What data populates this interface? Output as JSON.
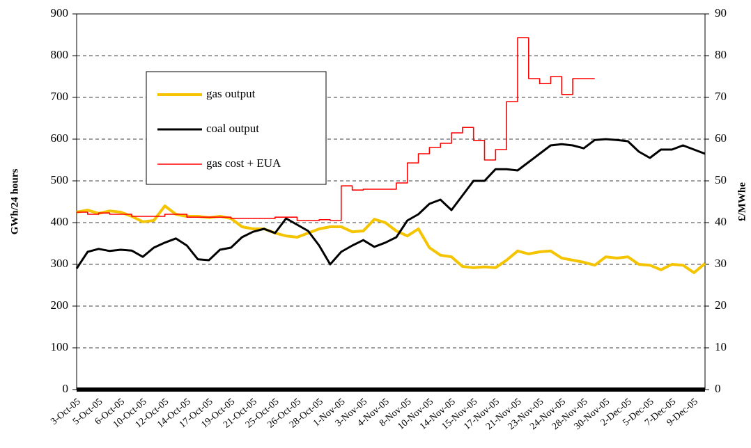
{
  "chart_data": {
    "type": "line",
    "ylabel": "GWh/24 hours",
    "y2label": "£/MWhe",
    "categories": [
      "3-Oct-05",
      null,
      "5-Oct-05",
      null,
      "6-Oct-05",
      null,
      "10-Oct-05",
      null,
      "12-Oct-05",
      null,
      "14-Oct-05",
      null,
      "17-Oct-05",
      null,
      "19-Oct-05",
      null,
      "21-Oct-05",
      null,
      "25-Oct-05",
      null,
      "26-Oct-05",
      null,
      "28-Oct-05",
      null,
      "1-Nov-05",
      null,
      "3-Nov-05",
      null,
      "4-Nov-05",
      null,
      "8-Nov-05",
      null,
      "10-Nov-05",
      null,
      "14-Nov-05",
      null,
      "15-Nov-05",
      null,
      "17-Nov-05",
      null,
      "21-Nov-05",
      null,
      "23-Nov-05",
      null,
      "24-Nov-05",
      null,
      "28-Nov-05",
      null,
      "30-Nov-05",
      null,
      "2-Dec-05",
      null,
      "5-Dec-05",
      null,
      "7-Dec-05",
      null,
      "9-Dec-05",
      null
    ],
    "series": [
      {
        "name": "gas output",
        "color": "#f5c400",
        "axis": "y",
        "values": [
          425,
          430,
          422,
          428,
          425,
          415,
          402,
          405,
          440,
          420,
          415,
          415,
          412,
          415,
          410,
          390,
          385,
          385,
          375,
          368,
          365,
          375,
          385,
          390,
          390,
          378,
          380,
          408,
          400,
          380,
          368,
          385,
          340,
          322,
          318,
          295,
          292,
          294,
          292,
          310,
          332,
          325,
          330,
          332,
          315,
          310,
          305,
          298,
          318,
          315,
          318,
          300,
          298,
          287,
          300,
          298,
          280,
          302
        ]
      },
      {
        "name": "coal output",
        "color": "#000000",
        "axis": "y",
        "values": [
          290,
          330,
          337,
          332,
          335,
          333,
          318,
          340,
          352,
          362,
          345,
          312,
          310,
          335,
          340,
          365,
          378,
          385,
          375,
          410,
          395,
          380,
          345,
          300,
          330,
          345,
          358,
          342,
          352,
          365,
          405,
          420,
          445,
          455,
          430,
          465,
          500,
          500,
          528,
          528,
          525,
          545,
          565,
          585,
          588,
          585,
          578,
          598,
          600,
          598,
          595,
          570,
          555,
          575,
          575,
          585,
          575,
          565
        ]
      },
      {
        "name": "gas cost + EUA",
        "color": "#ff0000",
        "axis": "y2",
        "step": true,
        "values": [
          42.5,
          42,
          42.3,
          42,
          42,
          41.5,
          41.5,
          41.5,
          42,
          42,
          41.3,
          41.3,
          41.3,
          41.3,
          41,
          41,
          41,
          41,
          41.3,
          41.3,
          40.5,
          40.5,
          40.7,
          40.5,
          48.8,
          47.8,
          48,
          48,
          48,
          49.5,
          54.3,
          56.5,
          58,
          59,
          61.5,
          62.8,
          59.7,
          55,
          57.5,
          69,
          84.3,
          74.5,
          73.3,
          75,
          70.7,
          74.5,
          74.5,
          74.5,
          null,
          null,
          null,
          null,
          null,
          null,
          null,
          null,
          null,
          null
        ]
      }
    ],
    "ylim": [
      0,
      900
    ],
    "yticks": [
      0,
      100,
      200,
      300,
      400,
      500,
      600,
      700,
      800,
      900
    ],
    "y2lim": [
      0,
      90
    ],
    "y2ticks": [
      0,
      10,
      20,
      30,
      40,
      50,
      60,
      70,
      80,
      90
    ],
    "grid": true,
    "legend": "upper left"
  }
}
